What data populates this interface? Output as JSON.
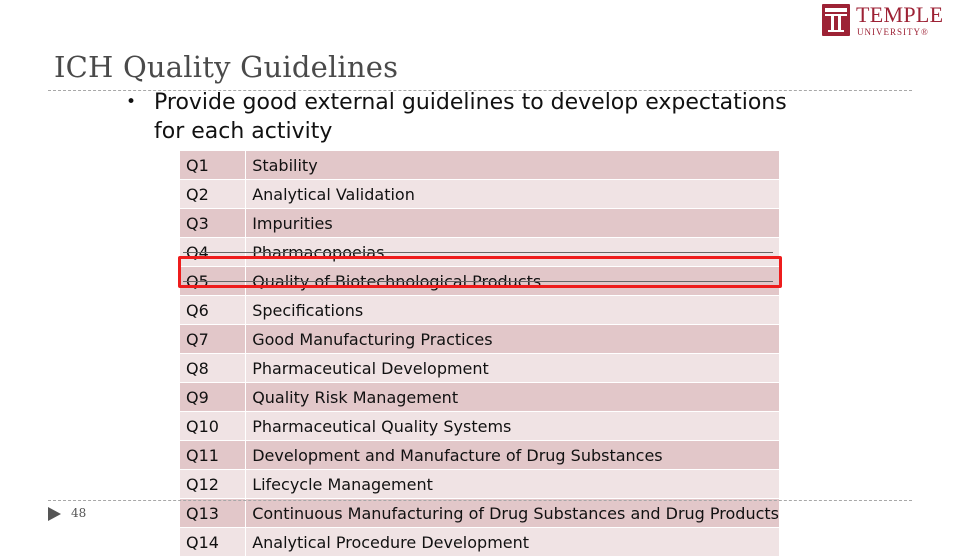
{
  "slide": {
    "title": "ICH Quality Guidelines",
    "bullet": "Provide good external guidelines to develop expectations for each activity",
    "page_number": "48"
  },
  "logo": {
    "name": "TEMPLE",
    "subtitle": "UNIVERSITY®",
    "brand_color": "#9d2235"
  },
  "table": {
    "rows": [
      {
        "code": "Q1",
        "title": "Stability"
      },
      {
        "code": "Q2",
        "title": "Analytical Validation"
      },
      {
        "code": "Q3",
        "title": "Impurities"
      },
      {
        "code": "Q4",
        "title": "Pharmacopoeias"
      },
      {
        "code": "Q5",
        "title": "Quality of Biotechnological Products"
      },
      {
        "code": "Q6",
        "title": "Specifications"
      },
      {
        "code": "Q7",
        "title": "Good Manufacturing Practices"
      },
      {
        "code": "Q8",
        "title": "Pharmaceutical Development"
      },
      {
        "code": "Q9",
        "title": "Quality Risk Management"
      },
      {
        "code": "Q10",
        "title": "Pharmaceutical Quality Systems"
      },
      {
        "code": "Q11",
        "title": "Development and Manufacture of Drug Substances"
      },
      {
        "code": "Q12",
        "title": "Lifecycle Management"
      },
      {
        "code": "Q13",
        "title": "Continuous Manufacturing of Drug Substances and Drug Products"
      },
      {
        "code": "Q14",
        "title": "Analytical Procedure Development"
      }
    ]
  },
  "highlight": {
    "color": "#ee1c1c"
  }
}
